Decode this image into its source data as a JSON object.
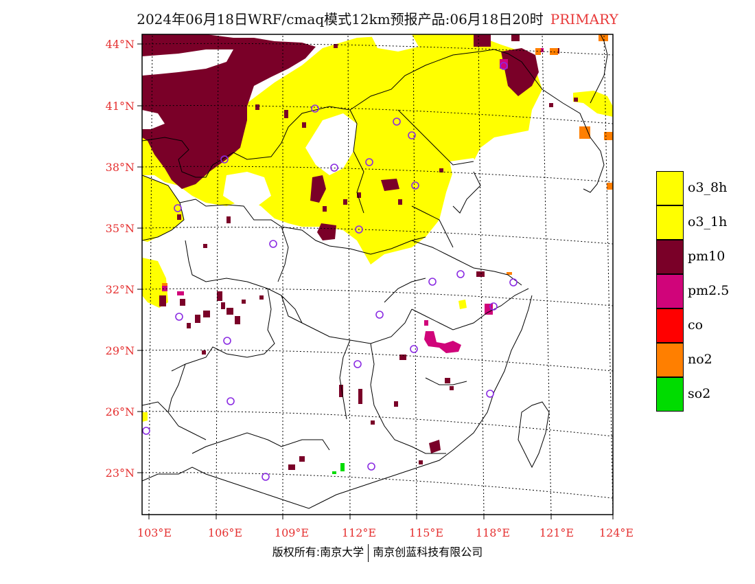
{
  "title": {
    "main": "2024年06月18日WRF/cmaq模式12km预报产品:06月18日20时",
    "tag": "PRIMARY"
  },
  "lat_labels": [
    "44°N",
    "41°N",
    "38°N",
    "35°N",
    "32°N",
    "29°N",
    "26°N",
    "23°N"
  ],
  "lon_labels": [
    "103°E",
    "106°E",
    "109°E",
    "112°E",
    "115°E",
    "118°E",
    "121°E",
    "124°E"
  ],
  "legend": [
    {
      "label": "o3_8h",
      "color": "#ffff00"
    },
    {
      "label": "o3_1h",
      "color": "#ffff00"
    },
    {
      "label": "pm10",
      "color": "#7a0028"
    },
    {
      "label": "pm2.5",
      "color": "#d0047a"
    },
    {
      "label": "co",
      "color": "#ff0000"
    },
    {
      "label": "no2",
      "color": "#ff7f00"
    },
    {
      "label": "so2",
      "color": "#00dc00"
    }
  ],
  "footer": {
    "left": "版权所有:南京大学",
    "right": "南京创蓝科技有限公司"
  }
}
